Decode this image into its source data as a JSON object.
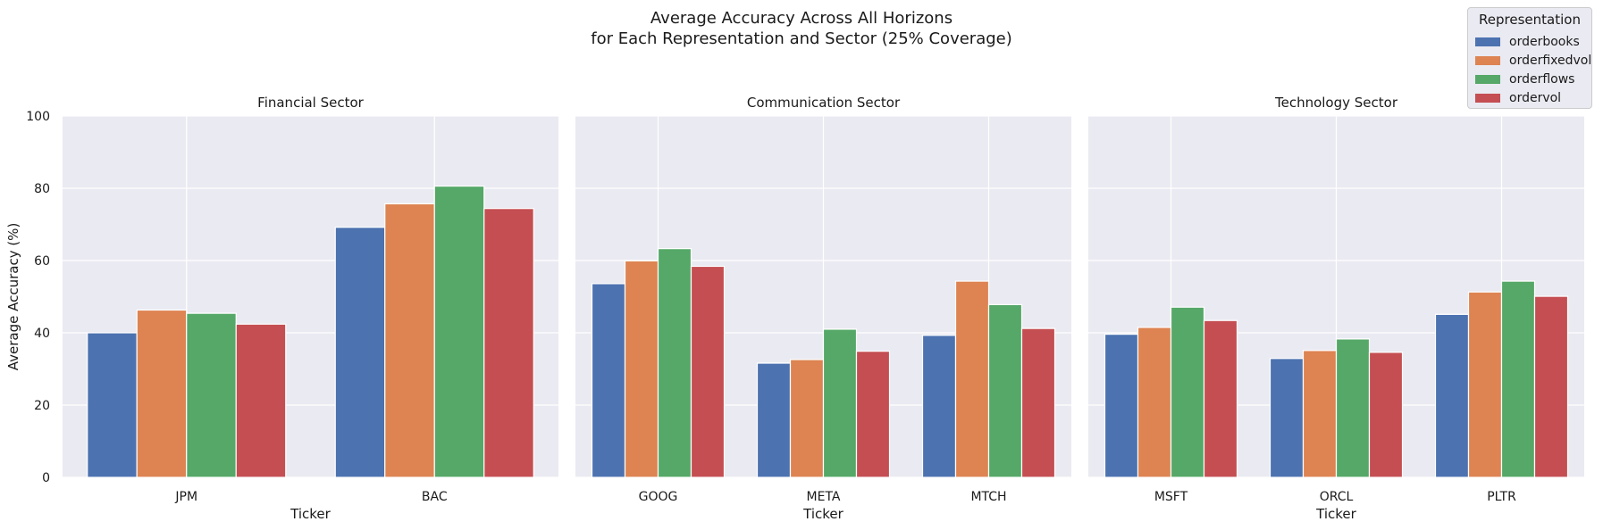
{
  "title_line1": "Average Accuracy Across All Horizons",
  "title_line2": "for Each Representation and Sector (25% Coverage)",
  "legend": {
    "title": "Representation",
    "placement": "top-right",
    "entries": [
      {
        "label": "orderbooks",
        "color": "#4c72b0"
      },
      {
        "label": "orderfixedvol",
        "color": "#dd8452"
      },
      {
        "label": "orderflows",
        "color": "#55a868"
      },
      {
        "label": "ordervol",
        "color": "#c44e52"
      }
    ]
  },
  "chart_data": [
    {
      "type": "bar",
      "title": "Financial Sector",
      "xlabel": "Ticker",
      "ylabel": "Average Accuracy (%)",
      "ylim": [
        0,
        100
      ],
      "yticks": [
        0,
        20,
        40,
        60,
        80,
        100
      ],
      "grid": true,
      "categories": [
        "JPM",
        "BAC"
      ],
      "series": [
        {
          "name": "orderbooks",
          "values": [
            40.0,
            69.2
          ]
        },
        {
          "name": "orderfixedvol",
          "values": [
            46.3,
            75.7
          ]
        },
        {
          "name": "orderflows",
          "values": [
            45.4,
            80.6
          ]
        },
        {
          "name": "ordervol",
          "values": [
            42.4,
            74.4
          ]
        }
      ]
    },
    {
      "type": "bar",
      "title": "Communication Sector",
      "xlabel": "Ticker",
      "ylabel": "",
      "ylim": [
        0,
        100
      ],
      "grid": true,
      "categories": [
        "GOOG",
        "META",
        "MTCH"
      ],
      "series": [
        {
          "name": "orderbooks",
          "values": [
            53.6,
            31.6,
            39.3
          ]
        },
        {
          "name": "orderfixedvol",
          "values": [
            59.9,
            32.6,
            54.3
          ]
        },
        {
          "name": "orderflows",
          "values": [
            63.3,
            41.0,
            47.8
          ]
        },
        {
          "name": "ordervol",
          "values": [
            58.4,
            34.9,
            41.2
          ]
        }
      ]
    },
    {
      "type": "bar",
      "title": "Technology Sector",
      "xlabel": "Ticker",
      "ylabel": "",
      "ylim": [
        0,
        100
      ],
      "grid": true,
      "categories": [
        "MSFT",
        "ORCL",
        "PLTR"
      ],
      "series": [
        {
          "name": "orderbooks",
          "values": [
            39.6,
            32.9,
            45.1
          ]
        },
        {
          "name": "orderfixedvol",
          "values": [
            41.5,
            35.1,
            51.3
          ]
        },
        {
          "name": "orderflows",
          "values": [
            47.1,
            38.3,
            54.3
          ]
        },
        {
          "name": "ordervol",
          "values": [
            43.4,
            34.6,
            50.1
          ]
        }
      ]
    }
  ]
}
